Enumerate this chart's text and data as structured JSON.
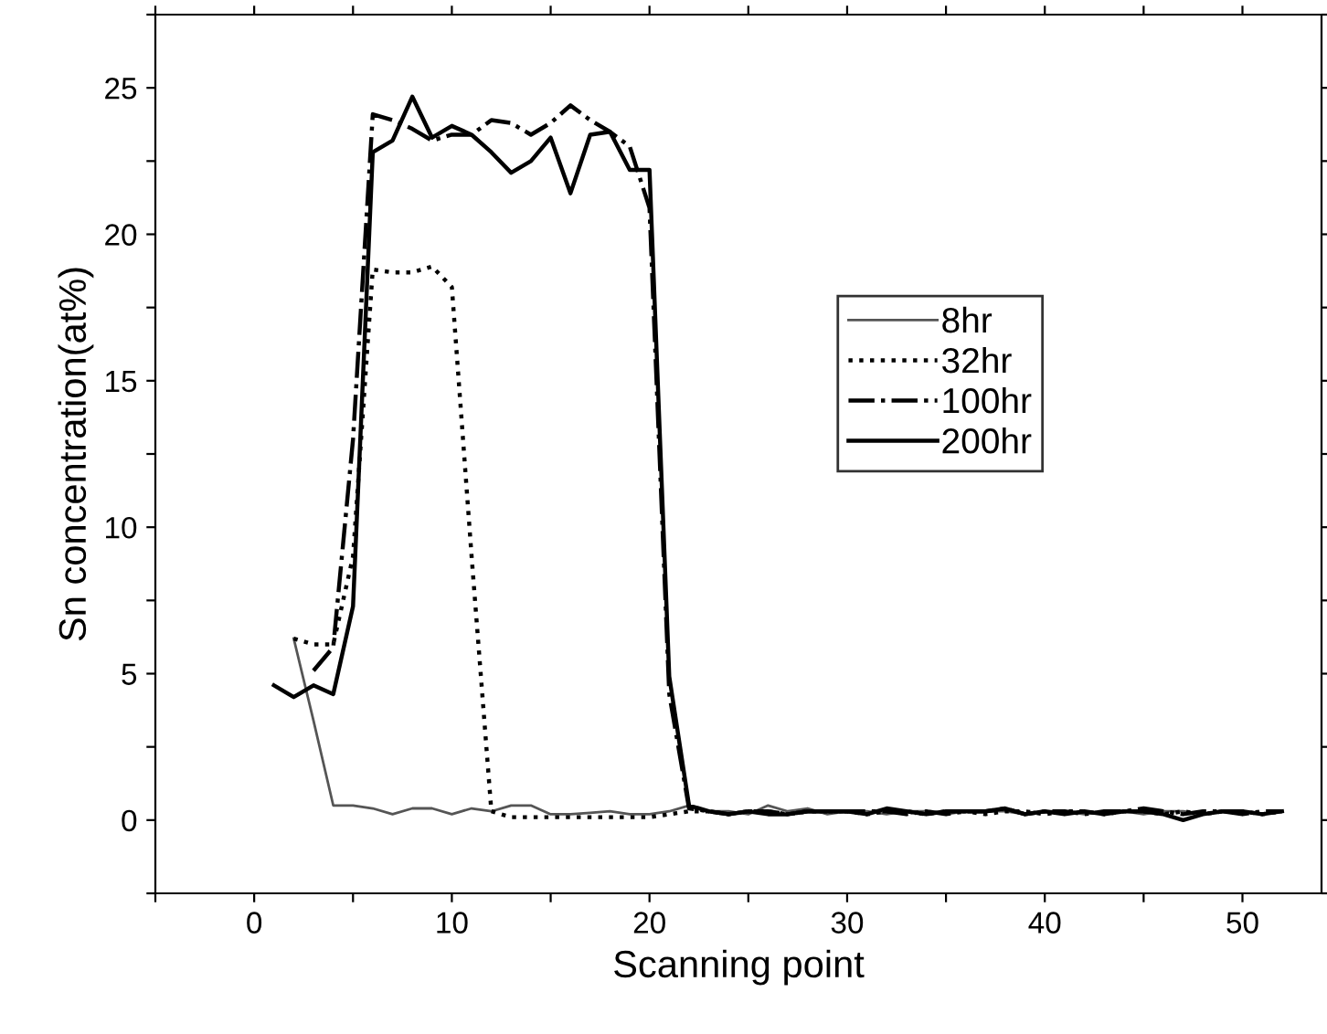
{
  "chart_data": {
    "type": "line",
    "xlabel": "Scanning point",
    "ylabel": "Sn concentration(at%)",
    "xlim": [
      -5,
      54
    ],
    "ylim": [
      -2.5,
      27.5
    ],
    "xticks": [
      {
        "value": -5,
        "label": null
      },
      0,
      {
        "value": 5,
        "label": null
      },
      10,
      {
        "value": 15,
        "label": null
      },
      20,
      {
        "value": 25,
        "label": null
      },
      30,
      {
        "value": 35,
        "label": null
      },
      40,
      {
        "value": 45,
        "label": null
      },
      50
    ],
    "yticks": [
      {
        "value": -2.5,
        "label": null
      },
      0,
      {
        "value": 2.5,
        "label": null
      },
      5,
      {
        "value": 7.5,
        "label": null
      },
      10,
      {
        "value": 12.5,
        "label": null
      },
      15,
      {
        "value": 17.5,
        "label": null
      },
      20,
      {
        "value": 22.5,
        "label": null
      },
      25,
      {
        "value": 27.5,
        "label": null
      }
    ],
    "legend": "right",
    "grid": false,
    "series": [
      {
        "name": "8hr",
        "color": "#555555",
        "line_style": "solid",
        "x": [
          2,
          3,
          4,
          5,
          6,
          7,
          8,
          9,
          10,
          11,
          12,
          13,
          14,
          15,
          16,
          17,
          18,
          19,
          20,
          21,
          22,
          23,
          24,
          25,
          26,
          27,
          28,
          29,
          30,
          31,
          32,
          33,
          34,
          35,
          36,
          37,
          38,
          39,
          40,
          41,
          42,
          43,
          44,
          45,
          46,
          47,
          48,
          49,
          50,
          51,
          52
        ],
        "values": [
          6.2,
          3.4,
          0.5,
          0.5,
          0.4,
          0.2,
          0.4,
          0.4,
          0.2,
          0.4,
          0.3,
          0.5,
          0.5,
          0.2,
          0.2,
          0.25,
          0.3,
          0.2,
          0.2,
          0.3,
          0.5,
          0.3,
          0.3,
          0.2,
          0.5,
          0.3,
          0.4,
          0.2,
          0.3,
          0.3,
          0.2,
          0.3,
          0.3,
          0.2,
          0.3,
          0.3,
          0.3,
          0.2,
          0.3,
          0.3,
          0.2,
          0.3,
          0.3,
          0.2,
          0.3,
          0.3,
          0.2,
          0.3,
          0.3,
          0.2,
          0.3
        ]
      },
      {
        "name": "32hr",
        "color": "#000000",
        "line_style": "dotted",
        "x": [
          2,
          3,
          4,
          5,
          6,
          7,
          8,
          9,
          10,
          11,
          12,
          13,
          14,
          15,
          16,
          17,
          18,
          19,
          20,
          21,
          22,
          23,
          24,
          25,
          26,
          27,
          28,
          29,
          30,
          31,
          32,
          33,
          34,
          35,
          36,
          37,
          38,
          39,
          40,
          41,
          42,
          43,
          44,
          45,
          46,
          47,
          48,
          49,
          50,
          51,
          52
        ],
        "values": [
          6.2,
          6.0,
          6.0,
          9.0,
          18.8,
          18.7,
          18.7,
          18.9,
          18.2,
          9.0,
          0.3,
          0.1,
          0.1,
          0.1,
          0.1,
          0.1,
          0.1,
          0.1,
          0.1,
          0.2,
          0.3,
          0.3,
          0.2,
          0.3,
          0.3,
          0.2,
          0.3,
          0.3,
          0.3,
          0.2,
          0.3,
          0.3,
          0.2,
          0.3,
          0.3,
          0.2,
          0.3,
          0.3,
          0.2,
          0.3,
          0.3,
          0.2,
          0.3,
          0.3,
          0.2,
          0.3,
          0.2,
          0.3,
          0.3,
          0.2,
          0.3
        ]
      },
      {
        "name": "100hr",
        "color": "#000000",
        "line_style": "dashdot",
        "x": [
          3,
          4,
          5,
          6,
          7,
          8,
          9,
          10,
          11,
          12,
          13,
          14,
          15,
          16,
          17,
          18,
          19,
          20,
          21,
          22,
          23,
          24,
          25,
          26,
          27,
          28,
          29,
          30,
          31,
          32,
          33,
          34,
          35,
          36,
          37,
          38,
          39,
          40,
          41,
          42,
          43,
          44,
          45,
          46,
          47,
          48,
          49,
          50,
          51,
          52
        ],
        "values": [
          5.1,
          5.9,
          13.0,
          24.1,
          23.9,
          23.6,
          23.2,
          23.4,
          23.4,
          23.9,
          23.8,
          23.4,
          23.8,
          24.4,
          23.9,
          23.5,
          23.0,
          20.9,
          4.3,
          0.4,
          0.3,
          0.2,
          0.3,
          0.3,
          0.2,
          0.3,
          0.3,
          0.3,
          0.3,
          0.3,
          0.2,
          0.3,
          0.2,
          0.3,
          0.3,
          0.4,
          0.2,
          0.3,
          0.3,
          0.2,
          0.3,
          0.3,
          0.4,
          0.3,
          0.2,
          0.3,
          0.3,
          0.2,
          0.3,
          0.3
        ]
      },
      {
        "name": "200hr",
        "color": "#000000",
        "line_style": "solid",
        "x": [
          1,
          2,
          3,
          4,
          5,
          6,
          7,
          8,
          9,
          10,
          11,
          12,
          13,
          14,
          15,
          16,
          17,
          18,
          19,
          20,
          21,
          22,
          23,
          24,
          25,
          26,
          27,
          28,
          29,
          30,
          31,
          32,
          33,
          34,
          35,
          36,
          37,
          38,
          39,
          40,
          41,
          42,
          43,
          44,
          45,
          46,
          47,
          48,
          49,
          50,
          51,
          52
        ],
        "values": [
          4.6,
          4.2,
          4.6,
          4.3,
          7.3,
          22.8,
          23.2,
          24.7,
          23.3,
          23.7,
          23.4,
          22.8,
          22.1,
          22.5,
          23.3,
          21.4,
          23.4,
          23.5,
          22.2,
          22.2,
          4.9,
          0.5,
          0.3,
          0.2,
          0.3,
          0.2,
          0.2,
          0.3,
          0.3,
          0.3,
          0.2,
          0.4,
          0.3,
          0.2,
          0.3,
          0.3,
          0.3,
          0.4,
          0.2,
          0.3,
          0.2,
          0.3,
          0.2,
          0.3,
          0.3,
          0.2,
          0.0,
          0.2,
          0.3,
          0.3,
          0.2,
          0.3
        ]
      }
    ]
  }
}
